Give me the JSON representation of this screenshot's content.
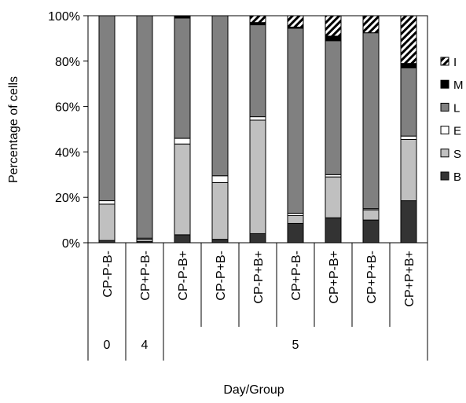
{
  "chart_data": {
    "type": "bar",
    "stacked": true,
    "normalized": true,
    "ylabel": "Percentage of cells",
    "xlabel": "Day/Group",
    "ylim": [
      0,
      100
    ],
    "yticks": [
      "0%",
      "20%",
      "40%",
      "60%",
      "80%",
      "100%"
    ],
    "categories": [
      "CP-P-B-",
      "CP+P-B-",
      "CP-P-B+",
      "CP-P+B-",
      "CP-P+B+",
      "CP+P-B-",
      "CP+P-B+",
      "CP+P+B-",
      "CP+P+B+"
    ],
    "day_groups": [
      {
        "label": "0",
        "span": 1
      },
      {
        "label": "4",
        "span": 1
      },
      {
        "label": "5",
        "span": 7
      }
    ],
    "legend_position": "right",
    "series": [
      {
        "name": "B",
        "color": "#333333",
        "pattern": "solid",
        "values": [
          1,
          0.5,
          3.5,
          1.5,
          4,
          8.5,
          11,
          10,
          18.5
        ]
      },
      {
        "name": "S",
        "color": "#c0c0c0",
        "pattern": "solid",
        "values": [
          16,
          1,
          40,
          25,
          50,
          3.5,
          18,
          4.5,
          27
        ]
      },
      {
        "name": "E",
        "color": "#ffffff",
        "pattern": "solid",
        "values": [
          1.5,
          0.5,
          2.5,
          3,
          1.5,
          1,
          1,
          0.5,
          1.5
        ]
      },
      {
        "name": "L",
        "color": "#808080",
        "pattern": "solid",
        "values": [
          81.5,
          98,
          53,
          70.5,
          40.5,
          81.5,
          59,
          77.5,
          30
        ]
      },
      {
        "name": "M",
        "color": "#000000",
        "pattern": "solid",
        "values": [
          0,
          0,
          1,
          0,
          1,
          0.5,
          2,
          0,
          2
        ]
      },
      {
        "name": "I",
        "color": "#ffffff",
        "pattern": "hatch",
        "values": [
          0,
          0,
          0,
          0,
          3,
          5,
          9,
          7.5,
          21
        ]
      }
    ]
  }
}
